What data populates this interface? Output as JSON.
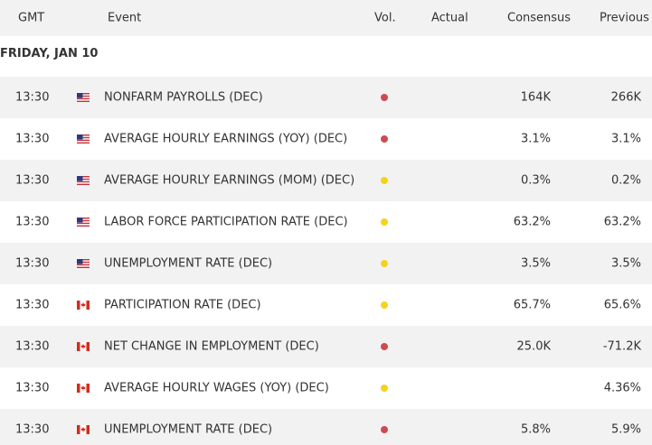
{
  "header": {
    "gmt": "GMT",
    "event": "Event",
    "vol": "Vol.",
    "actual": "Actual",
    "consensus": "Consensus",
    "previous": "Previous"
  },
  "date": "FRIDAY, JAN 10",
  "rows": [
    {
      "time": "13:30",
      "event": "NONFARM PAYROLLS (DEC)",
      "volatility_color": "#cf4a50",
      "consensus": "164K",
      "previous": "266K"
    },
    {
      "time": "13:30",
      "event": "AVERAGE HOURLY EARNINGS (YOY) (DEC)",
      "volatility_color": "#cf4a50",
      "consensus": "3.1%",
      "previous": "3.1%"
    },
    {
      "time": "13:30",
      "event": "AVERAGE HOURLY EARNINGS (MOM) (DEC)",
      "volatility_color": "#f3d31c",
      "consensus": "0.3%",
      "previous": "0.2%"
    },
    {
      "time": "13:30",
      "event": "LABOR FORCE PARTICIPATION RATE (DEC)",
      "volatility_color": "#f3d31c",
      "consensus": "63.2%",
      "previous": "63.2%"
    },
    {
      "time": "13:30",
      "event": "UNEMPLOYMENT RATE (DEC)",
      "volatility_color": "#f3d31c",
      "consensus": "3.5%",
      "previous": "3.5%"
    },
    {
      "time": "13:30",
      "event": "PARTICIPATION RATE (DEC)",
      "volatility_color": "#f3d31c",
      "consensus": "65.7%",
      "previous": "65.6%"
    },
    {
      "time": "13:30",
      "event": "NET CHANGE IN EMPLOYMENT (DEC)",
      "volatility_color": "#cf4a50",
      "consensus": "25.0K",
      "previous": "-71.2K"
    },
    {
      "time": "13:30",
      "event": "AVERAGE HOURLY WAGES (YOY) (DEC)",
      "volatility_color": "#f3d31c",
      "consensus": null,
      "previous": "4.36%"
    },
    {
      "time": "13:30",
      "event": "UNEMPLOYMENT RATE (DEC)",
      "volatility_color": "#cf4a50",
      "consensus": "5.8%",
      "previous": "5.9%"
    }
  ]
}
